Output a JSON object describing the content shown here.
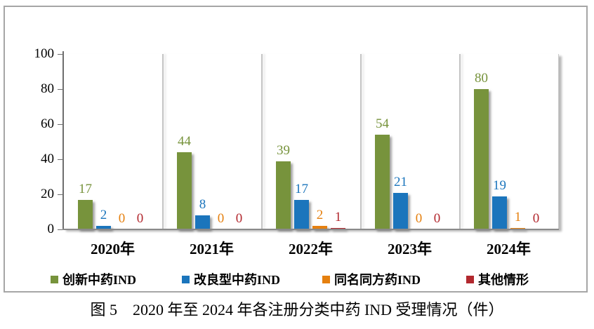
{
  "figure": {
    "caption": "图 5　2020 年至 2024 年各注册分类中药 IND 受理情况（件）"
  },
  "chart_data": {
    "type": "bar",
    "title": "",
    "xlabel": "",
    "ylabel": "",
    "categories": [
      "2020年",
      "2021年",
      "2022年",
      "2023年",
      "2024年"
    ],
    "series": [
      {
        "name": "创新中药IND",
        "color": "#77933C",
        "values": [
          17,
          44,
          39,
          54,
          80
        ]
      },
      {
        "name": "改良型中药IND",
        "color": "#1B75BC",
        "values": [
          2,
          8,
          17,
          21,
          19
        ]
      },
      {
        "name": "同名同方药IND",
        "color": "#E5800F",
        "values": [
          0,
          0,
          2,
          0,
          1
        ]
      },
      {
        "name": "其他情形",
        "color": "#B2282E",
        "values": [
          0,
          0,
          1,
          0,
          0
        ]
      }
    ],
    "ylim": [
      0,
      100
    ],
    "yticks": [
      0,
      20,
      40,
      60,
      80,
      100
    ],
    "legend_position": "bottom",
    "grid": "vertical category separator lines",
    "value_labels": "above each bar, colored to match its series"
  },
  "colors": {
    "axis": "#6e6e6e",
    "separator": "#c4c4c4",
    "chart_border": "#a6a6a6"
  }
}
